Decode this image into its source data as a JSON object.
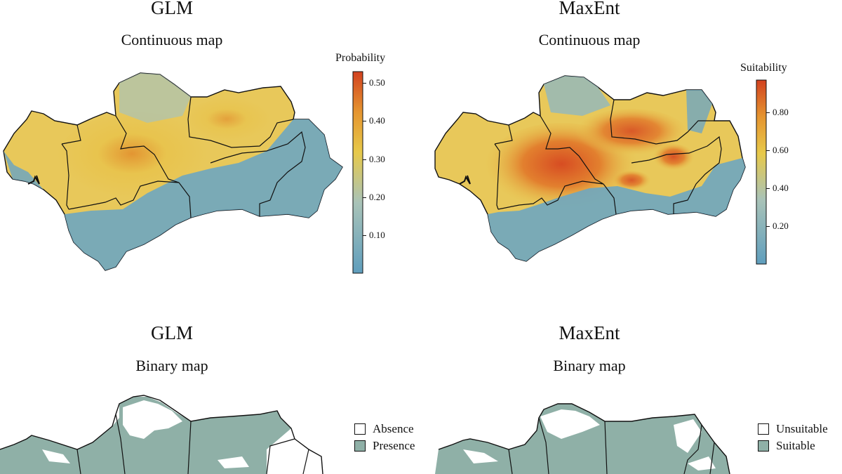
{
  "panels": [
    {
      "model": "GLM",
      "subtitle": "Continuous map",
      "legend_title": "Probability",
      "ticks": [
        "0.50",
        "0.40",
        "0.30",
        "0.20",
        "0.10"
      ],
      "tick_values": [
        0.5,
        0.4,
        0.3,
        0.2,
        0.1
      ],
      "scale_max": 0.53
    },
    {
      "model": "MaxEnt",
      "subtitle": "Continuous map",
      "legend_title": "Suitability",
      "ticks": [
        "0.80",
        "0.60",
        "0.40",
        "0.20"
      ],
      "tick_values": [
        0.8,
        0.6,
        0.4,
        0.2
      ],
      "scale_max": 0.97
    },
    {
      "model": "GLM",
      "subtitle": "Binary map",
      "legend": [
        "Absence",
        "Presence"
      ]
    },
    {
      "model": "MaxEnt",
      "subtitle": "Binary map",
      "legend": [
        "Unsuitable",
        "Suitable"
      ]
    }
  ],
  "colors": {
    "low": "#5f9ebd",
    "mid": "#e7c94a",
    "high": "#d2411f",
    "presence": "#8fb0a7",
    "absence": "#ffffff",
    "border": "#111111"
  }
}
